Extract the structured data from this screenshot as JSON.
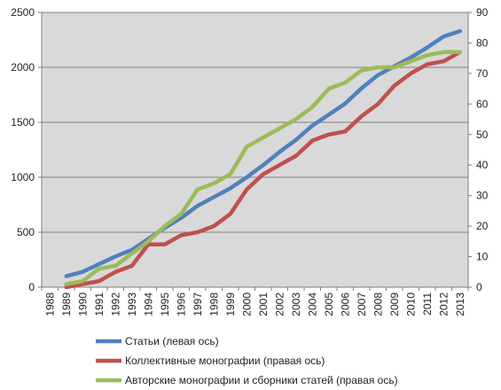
{
  "colors": {
    "plot_background": "#d9d9d9",
    "gridline": "#7f7f7f",
    "axis": "#7f7f7f"
  },
  "chart_data": {
    "type": "line",
    "title": "",
    "xlabel": "",
    "ylabel": "",
    "y2label": "",
    "categories": [
      "1988",
      "1989",
      "1990",
      "1991",
      "1992",
      "1993",
      "1994",
      "1995",
      "1996",
      "1997",
      "1998",
      "1999",
      "2000",
      "2001",
      "2002",
      "2003",
      "2004",
      "2005",
      "2006",
      "2007",
      "2008",
      "2009",
      "2010",
      "2011",
      "2012",
      "2013"
    ],
    "ylim": [
      0,
      2500
    ],
    "y_ticks": [
      "0",
      "500",
      "1000",
      "1500",
      "2000",
      "2500"
    ],
    "y2lim": [
      0,
      90
    ],
    "y2_ticks": [
      "0",
      "10",
      "20",
      "30",
      "40",
      "50",
      "60",
      "70",
      "80",
      "90"
    ],
    "grid": true,
    "legend_position": "bottom",
    "series": [
      {
        "name": "Статьи (левая ось)",
        "axis": "left",
        "color": "#4f81bd",
        "values": [
          null,
          100,
          140,
          210,
          280,
          340,
          440,
          540,
          630,
          740,
          820,
          900,
          1000,
          1110,
          1230,
          1340,
          1470,
          1570,
          1670,
          1810,
          1930,
          2010,
          2090,
          2180,
          2280,
          2330
        ]
      },
      {
        "name": "Коллективные монографии (правая ось)",
        "axis": "right",
        "color": "#c0504d",
        "values": [
          null,
          0,
          1,
          2,
          5,
          7,
          14,
          14,
          17,
          18,
          20,
          24,
          32,
          37,
          40,
          43,
          48,
          50,
          51,
          56,
          60,
          66,
          70,
          73,
          74,
          77
        ]
      },
      {
        "name": "Авторские монографии и сборники статей (правая ось)",
        "axis": "right",
        "color": "#9bbb59",
        "values": [
          null,
          1,
          2,
          6,
          7,
          11,
          15,
          20,
          24,
          32,
          34,
          37,
          46,
          49,
          52,
          55,
          59,
          65,
          67,
          71,
          72,
          72,
          74,
          76,
          77,
          77
        ]
      }
    ]
  }
}
